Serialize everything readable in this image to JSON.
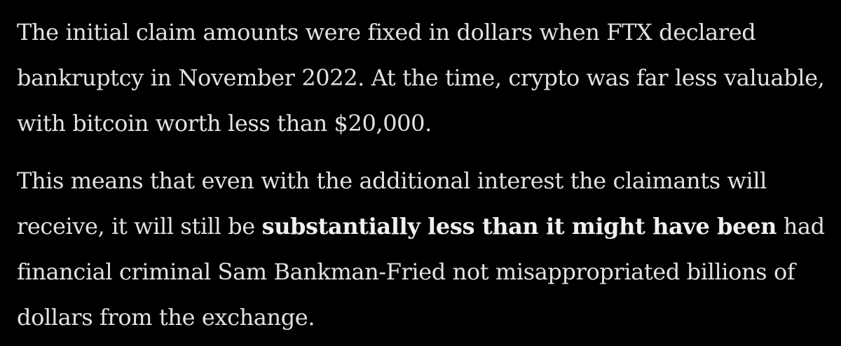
{
  "article": {
    "paragraphs": [
      {
        "text": "The initial claim amounts were fixed in dollars when FTX declared bankruptcy in November 2022. At the time, crypto was far less valuable, with bitcoin worth less than $20,000."
      },
      {
        "before": "This means that even with the additional interest the claimants will receive, it will still be ",
        "bold": "substantially less than it might have been",
        "after": " had financial criminal Sam Bankman-Fried not misappropriated billions of dollars from the exchange."
      }
    ]
  }
}
